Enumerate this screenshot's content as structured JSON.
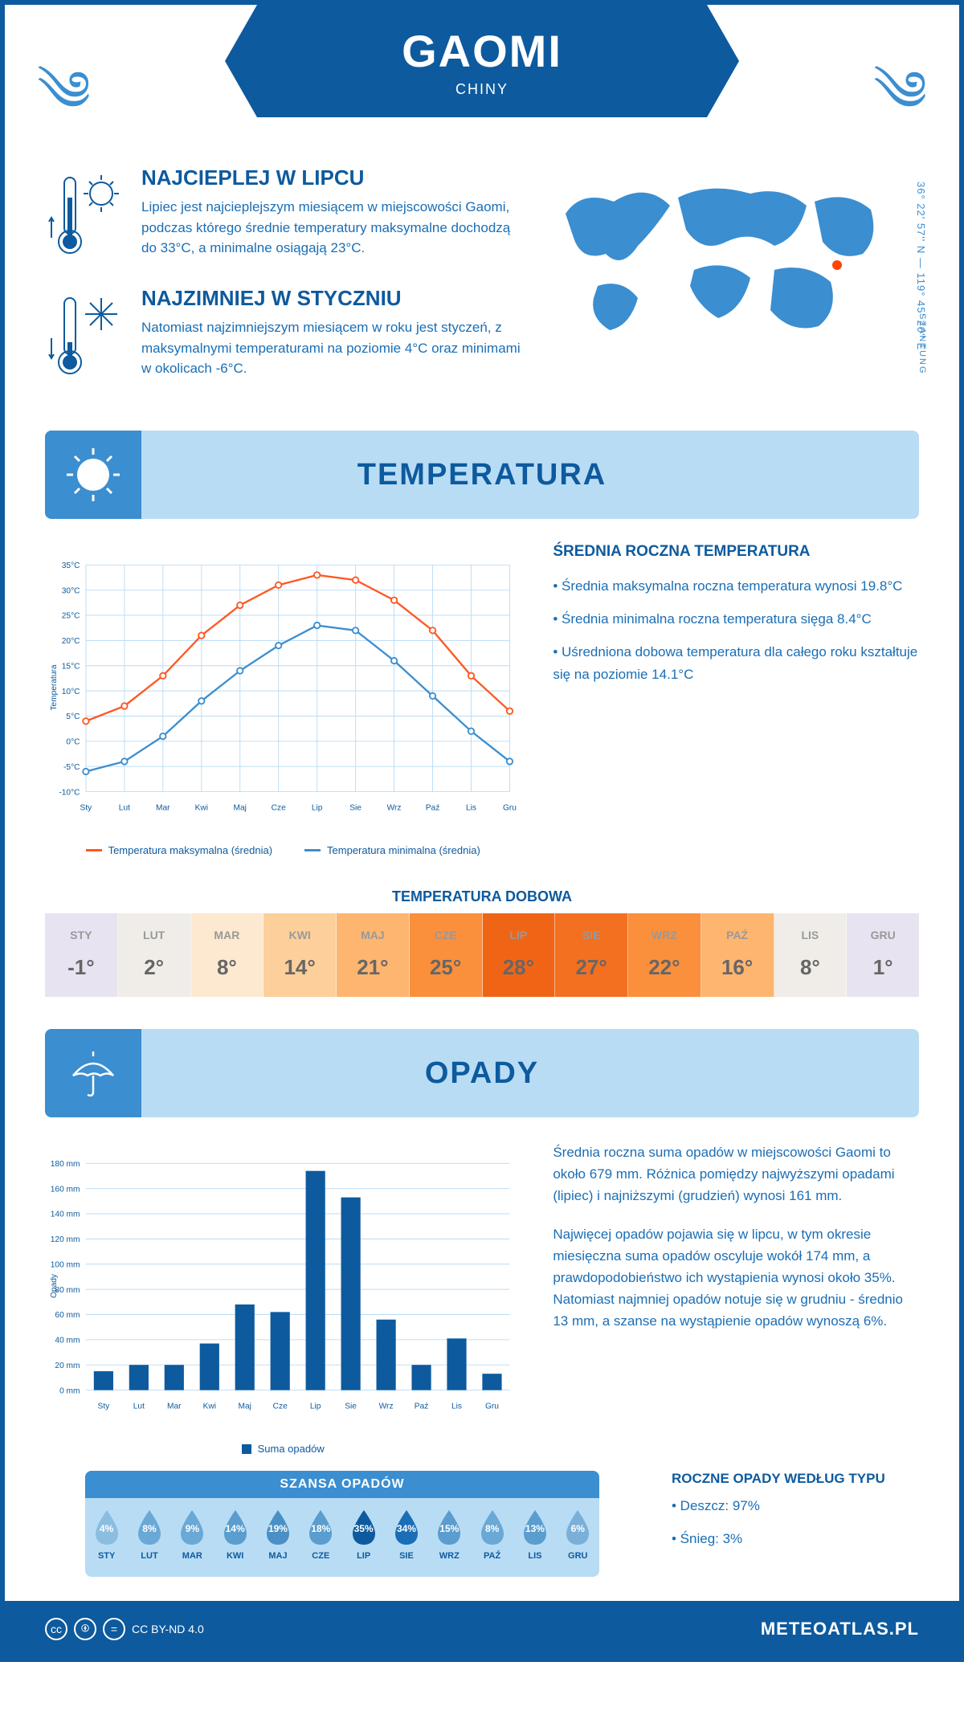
{
  "header": {
    "city": "GAOMI",
    "country": "CHINY"
  },
  "coords": "36° 22' 57'' N — 119° 45' 20'' E",
  "region": "SZANTUNG",
  "intro": {
    "hot": {
      "title": "NAJCIEPLEJ W LIPCU",
      "text": "Lipiec jest najcieplejszym miesiącem w miejscowości Gaomi, podczas którego średnie temperatury maksymalne dochodzą do 33°C, a minimalne osiągają 23°C."
    },
    "cold": {
      "title": "NAJZIMNIEJ W STYCZNIU",
      "text": "Natomiast najzimniejszym miesiącem w roku jest styczeń, z maksymalnymi temperaturami na poziomie 4°C oraz minimami w okolicach -6°C."
    }
  },
  "sections": {
    "temp": "TEMPERATURA",
    "opady": "OPADY"
  },
  "tempChart": {
    "type": "line",
    "months": [
      "Sty",
      "Lut",
      "Mar",
      "Kwi",
      "Maj",
      "Cze",
      "Lip",
      "Sie",
      "Wrz",
      "Paź",
      "Lis",
      "Gru"
    ],
    "ylabel": "Temperatura",
    "ylim": [
      -10,
      35
    ],
    "ytick_step": 5,
    "series": [
      {
        "name": "Temperatura maksymalna (średnia)",
        "color": "#ff5722",
        "values": [
          4,
          7,
          13,
          21,
          27,
          31,
          33,
          32,
          28,
          22,
          13,
          6
        ]
      },
      {
        "name": "Temperatura minimalna (średnia)",
        "color": "#3b8ed0",
        "values": [
          -6,
          -4,
          1,
          8,
          14,
          19,
          23,
          22,
          16,
          9,
          2,
          -4
        ]
      }
    ],
    "grid_color": "#b9dcf5",
    "background": "#ffffff"
  },
  "tempInfo": {
    "title": "ŚREDNIA ROCZNA TEMPERATURA",
    "bullets": [
      "Średnia maksymalna roczna temperatura wynosi 19.8°C",
      "Średnia minimalna roczna temperatura sięga 8.4°C",
      "Uśredniona dobowa temperatura dla całego roku kształtuje się na poziomie 14.1°C"
    ]
  },
  "daily": {
    "title": "TEMPERATURA DOBOWA",
    "months": [
      "STY",
      "LUT",
      "MAR",
      "KWI",
      "MAJ",
      "CZE",
      "LIP",
      "SIE",
      "WRZ",
      "PAŹ",
      "LIS",
      "GRU"
    ],
    "values": [
      "-1°",
      "2°",
      "8°",
      "14°",
      "21°",
      "25°",
      "28°",
      "27°",
      "22°",
      "16°",
      "8°",
      "1°"
    ],
    "bg_colors": [
      "#e8e3f0",
      "#f0ede8",
      "#fde8d0",
      "#fdcf9a",
      "#fdb570",
      "#fa8f3c",
      "#f06515",
      "#f37021",
      "#fa8f3c",
      "#fdb570",
      "#f0ede8",
      "#e8e3f0"
    ]
  },
  "opadyChart": {
    "type": "bar",
    "months": [
      "Sty",
      "Lut",
      "Mar",
      "Kwi",
      "Maj",
      "Cze",
      "Lip",
      "Sie",
      "Wrz",
      "Paź",
      "Lis",
      "Gru"
    ],
    "ylabel": "Opady",
    "values": [
      15,
      20,
      20,
      37,
      68,
      62,
      174,
      153,
      56,
      20,
      41,
      13
    ],
    "ylim": [
      0,
      180
    ],
    "ytick_step": 20,
    "bar_color": "#0d5a9e",
    "grid_color": "#b9dcf5",
    "legend": "Suma opadów"
  },
  "opadyInfo": {
    "para1": "Średnia roczna suma opadów w miejscowości Gaomi to około 679 mm. Różnica pomiędzy najwyższymi opadami (lipiec) i najniższymi (grudzień) wynosi 161 mm.",
    "para2": "Najwięcej opadów pojawia się w lipcu, w tym okresie miesięczna suma opadów oscyluje wokół 174 mm, a prawdopodobieństwo ich wystąpienia wynosi około 35%. Natomiast najmniej opadów notuje się w grudniu - średnio 13 mm, a szanse na wystąpienie opadów wynoszą 6%."
  },
  "szansa": {
    "title": "SZANSA OPADÓW",
    "months": [
      "STY",
      "LUT",
      "MAR",
      "KWI",
      "MAJ",
      "CZE",
      "LIP",
      "SIE",
      "WRZ",
      "PAŹ",
      "LIS",
      "GRU"
    ],
    "pct": [
      "4%",
      "8%",
      "9%",
      "14%",
      "19%",
      "18%",
      "35%",
      "34%",
      "15%",
      "8%",
      "13%",
      "6%"
    ],
    "colors": [
      "#8bbde0",
      "#6aa9d6",
      "#6aa9d6",
      "#5a9dce",
      "#4a90c6",
      "#5a9dce",
      "#0d5a9e",
      "#1a6eb5",
      "#5a9dce",
      "#6aa9d6",
      "#5a9dce",
      "#7ab0d8"
    ]
  },
  "opadyType": {
    "title": "ROCZNE OPADY WEDŁUG TYPU",
    "items": [
      "Deszcz: 97%",
      "Śnieg: 3%"
    ]
  },
  "footer": {
    "license": "CC BY-ND 4.0",
    "brand": "METEOATLAS.PL"
  }
}
